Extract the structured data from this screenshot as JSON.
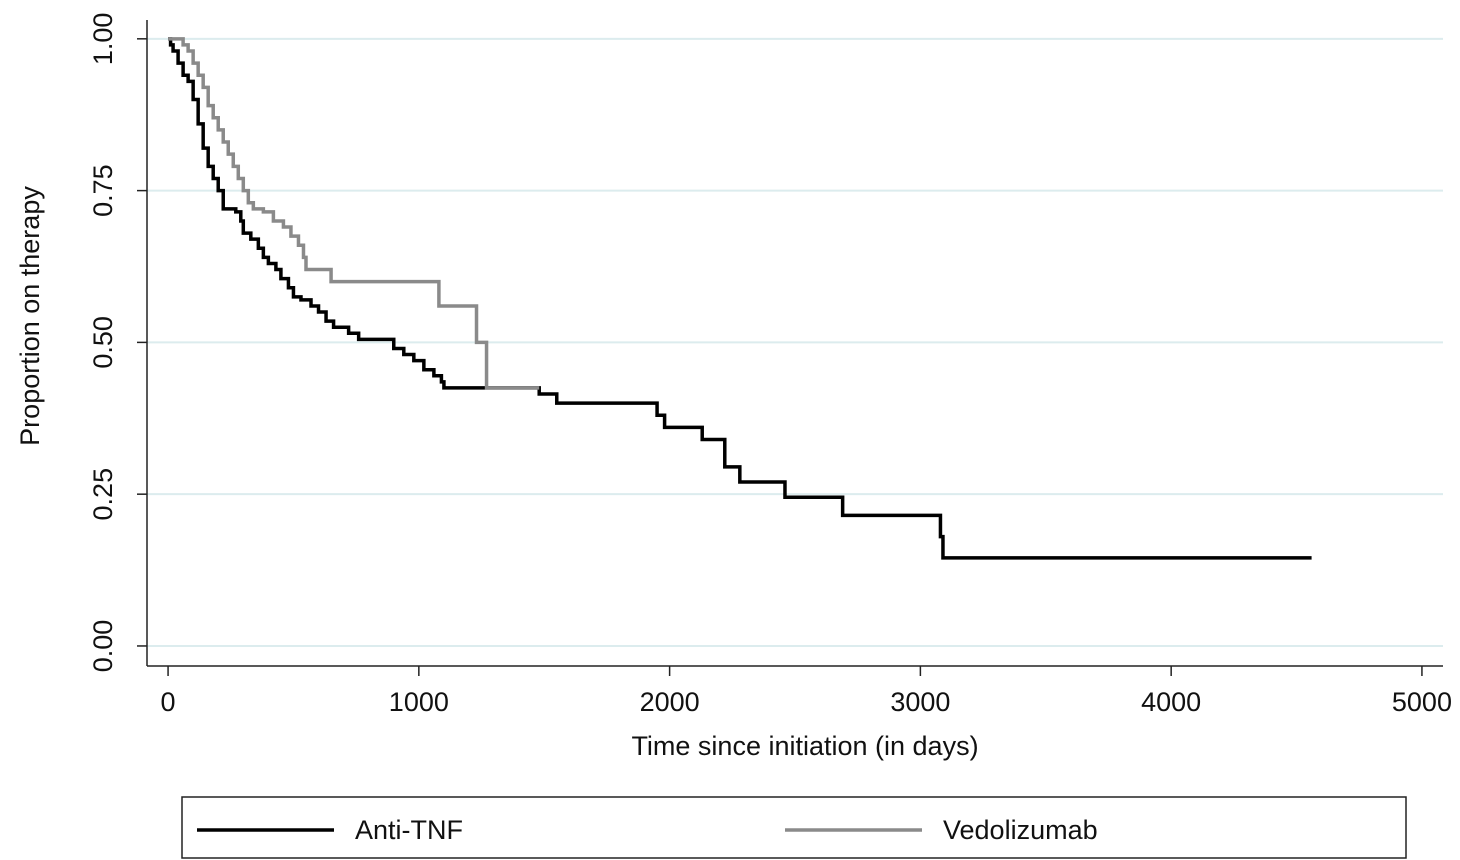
{
  "chart_data": {
    "type": "line",
    "step": "post",
    "xlabel": "Time since initiation (in days)",
    "ylabel": "Proportion on therapy",
    "xlim": [
      -84,
      5084
    ],
    "ylim": [
      -0.033,
      1.031
    ],
    "xticks": [
      0,
      1000,
      2000,
      3000,
      4000,
      5000
    ],
    "yticks": [
      {
        "value": 0,
        "label": "0.00"
      },
      {
        "value": 0.25,
        "label": "0.25"
      },
      {
        "value": 0.5,
        "label": "0.50"
      },
      {
        "value": 0.75,
        "label": "0.75"
      },
      {
        "value": 1,
        "label": "1.00"
      }
    ],
    "grid": true,
    "grid_color": "#dcecee",
    "legend": "bottom",
    "series": [
      {
        "name": "Anti-TNF",
        "color": "#000000",
        "x": [
          0,
          10,
          20,
          40,
          60,
          80,
          100,
          120,
          140,
          160,
          180,
          200,
          220,
          270,
          290,
          300,
          330,
          360,
          380,
          400,
          430,
          450,
          480,
          500,
          530,
          570,
          600,
          630,
          660,
          720,
          760,
          900,
          940,
          980,
          1020,
          1060,
          1090,
          1100,
          1480,
          1550,
          1950,
          1980,
          2130,
          2220,
          2280,
          2460,
          2690,
          3080,
          3090,
          4560
        ],
        "values": [
          1.0,
          0.99,
          0.98,
          0.96,
          0.94,
          0.93,
          0.9,
          0.86,
          0.82,
          0.79,
          0.77,
          0.75,
          0.72,
          0.715,
          0.7,
          0.68,
          0.67,
          0.655,
          0.64,
          0.63,
          0.62,
          0.605,
          0.59,
          0.575,
          0.57,
          0.56,
          0.55,
          0.535,
          0.525,
          0.515,
          0.505,
          0.49,
          0.48,
          0.47,
          0.455,
          0.445,
          0.435,
          0.425,
          0.415,
          0.4,
          0.38,
          0.36,
          0.34,
          0.295,
          0.27,
          0.245,
          0.215,
          0.18,
          0.145,
          0.145
        ]
      },
      {
        "name": "Vedolizumab",
        "color": "#8a8a8a",
        "x": [
          0,
          60,
          80,
          100,
          120,
          140,
          160,
          180,
          200,
          220,
          240,
          260,
          280,
          300,
          320,
          340,
          380,
          420,
          460,
          490,
          520,
          540,
          550,
          650,
          1080,
          1230,
          1270,
          1480
        ],
        "values": [
          1.0,
          0.99,
          0.98,
          0.96,
          0.94,
          0.92,
          0.89,
          0.87,
          0.85,
          0.83,
          0.81,
          0.79,
          0.77,
          0.75,
          0.73,
          0.72,
          0.715,
          0.7,
          0.69,
          0.675,
          0.66,
          0.64,
          0.62,
          0.6,
          0.56,
          0.5,
          0.425,
          0.425
        ]
      }
    ]
  }
}
